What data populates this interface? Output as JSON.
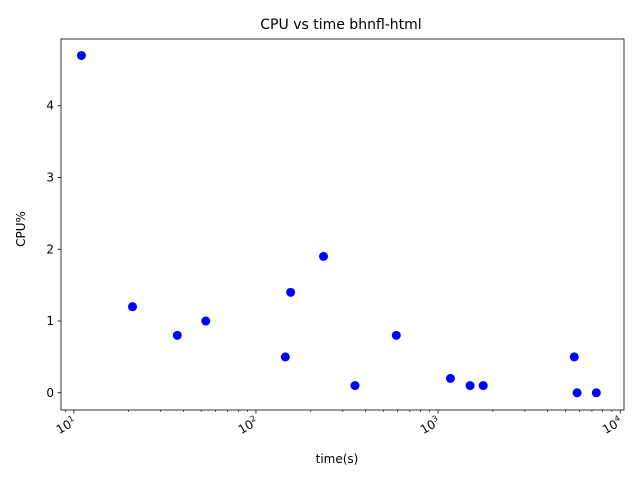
{
  "chart_data": {
    "type": "scatter",
    "title": "CPU vs time bhnfl-html",
    "xlabel": "time(s)",
    "ylabel": "CPU%",
    "x_scale": "log",
    "xlim": [
      8.5,
      10500
    ],
    "ylim": [
      -0.24,
      4.93
    ],
    "x_tick_values": [
      10,
      100,
      1000,
      10000
    ],
    "x_tick_labels": [
      "10",
      "100",
      "1000",
      "10000"
    ],
    "y_ticks": [
      0,
      1,
      2,
      3,
      4
    ],
    "y_tick_labels": [
      "0",
      "1",
      "2",
      "3",
      "4"
    ],
    "marker_color": "#0000ff",
    "grid": false,
    "points": [
      {
        "x": 11,
        "y": 4.7
      },
      {
        "x": 21,
        "y": 1.2
      },
      {
        "x": 37,
        "y": 0.8
      },
      {
        "x": 53,
        "y": 1.0
      },
      {
        "x": 145,
        "y": 0.5
      },
      {
        "x": 155,
        "y": 1.4
      },
      {
        "x": 235,
        "y": 1.9
      },
      {
        "x": 350,
        "y": 0.1
      },
      {
        "x": 590,
        "y": 0.8
      },
      {
        "x": 1170,
        "y": 0.2
      },
      {
        "x": 1500,
        "y": 0.1
      },
      {
        "x": 1770,
        "y": 0.1
      },
      {
        "x": 5600,
        "y": 0.5
      },
      {
        "x": 5800,
        "y": 0.0
      },
      {
        "x": 7400,
        "y": 0.0
      }
    ]
  }
}
